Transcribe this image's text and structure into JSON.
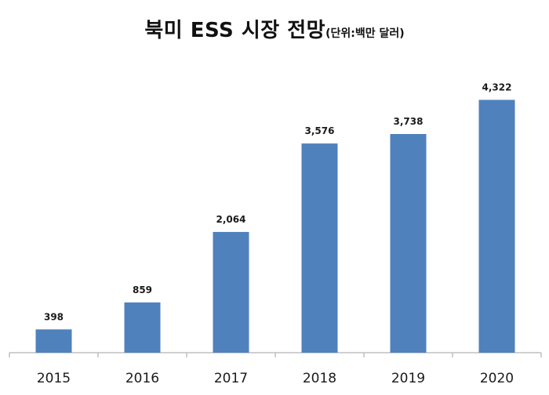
{
  "chart_data": {
    "type": "bar",
    "title": "북미 ESS 시장 전망",
    "subtitle": "(단위:백만 달러)",
    "categories": [
      "2015",
      "2016",
      "2017",
      "2018",
      "2019",
      "2020"
    ],
    "values": [
      398,
      859,
      2064,
      3576,
      3738,
      4322
    ],
    "data_labels": [
      "398",
      "859",
      "2,064",
      "3,576",
      "3,738",
      "4,322"
    ],
    "xlabel": "",
    "ylabel": "",
    "ylim": [
      0,
      4850
    ],
    "grid": false,
    "legend": "none",
    "bar_color": "#4F81BD",
    "axis_color": "#BFBFBF"
  }
}
